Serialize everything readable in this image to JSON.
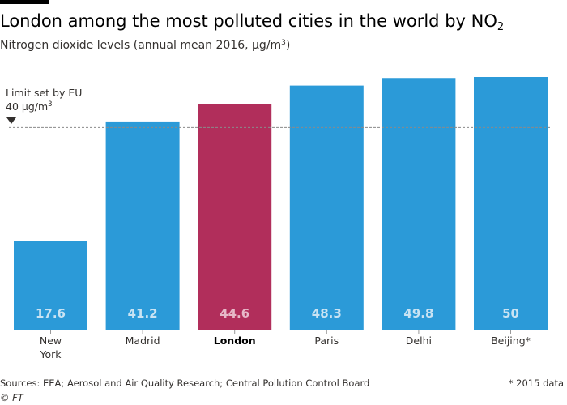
{
  "header": {
    "title_main": "London among the most polluted cities in the world by NO",
    "title_sub": "2",
    "subtitle_main": "Nitrogen dioxide levels (annual mean 2016, µg/m",
    "subtitle_sup": "3",
    "subtitle_end": ")"
  },
  "chart_data": {
    "type": "bar",
    "title": "London among the most polluted cities in the world by NO2",
    "subtitle": "Nitrogen dioxide levels (annual mean 2016, µg/m3)",
    "categories": [
      [
        "New",
        "York"
      ],
      [
        "Madrid"
      ],
      [
        "London"
      ],
      [
        "Paris"
      ],
      [
        "Delhi"
      ],
      [
        "Beijing*"
      ]
    ],
    "values": [
      17.6,
      41.2,
      44.6,
      48.3,
      49.8,
      50
    ],
    "value_labels": [
      "17.6",
      "41.2",
      "44.6",
      "48.3",
      "49.8",
      "50"
    ],
    "highlight_index": 2,
    "colors": {
      "bar": "#2b9ad8",
      "highlight": "#b12e5b",
      "value_text": "#c9e3f3",
      "highlight_value_text": "#e7b8c8",
      "reference_line": "#8a8a8a"
    },
    "ylim": [
      0,
      50
    ],
    "reference_line": {
      "value": 40,
      "label_line1": "Limit set by EU",
      "label_line2_main": "40 µg/m",
      "label_line2_sup": "3"
    }
  },
  "footer": {
    "sources": "Sources: EEA; Aerosol and Air Quality Research; Central Pollution Control Board",
    "note": "* 2015 data",
    "credit": "© FT"
  }
}
